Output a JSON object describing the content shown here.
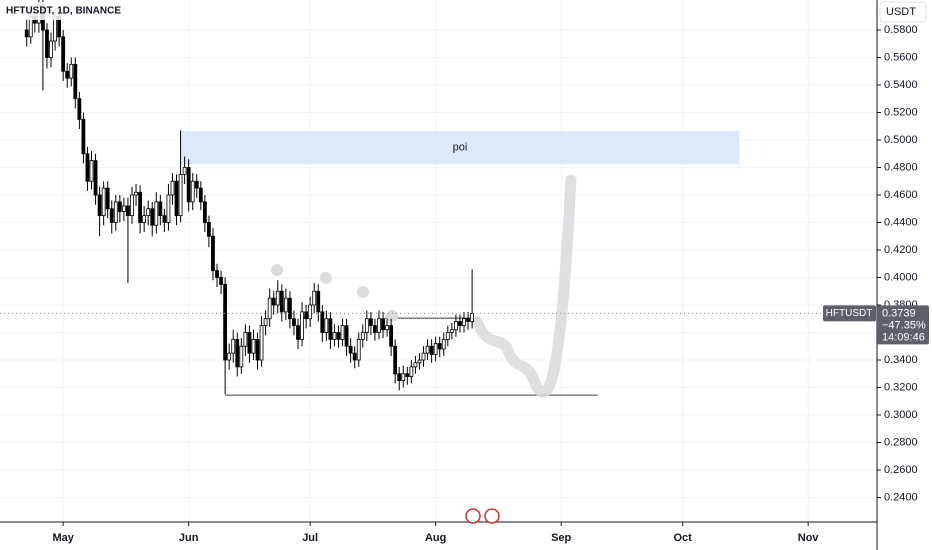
{
  "chart_data": {
    "type": "candlestick",
    "title": "HFTUSDT, 1D, BINANCE",
    "currency": "USDT",
    "up_color": "#ffffff",
    "down_color": "#000000",
    "grid": true,
    "xlim": [
      -15.6,
      201
    ],
    "ylim": [
      0.2222,
      0.6018
    ],
    "xticks": [
      {
        "value": 0,
        "label": "May"
      },
      {
        "value": 31,
        "label": "Jun"
      },
      {
        "value": 61,
        "label": "Jul"
      },
      {
        "value": 92,
        "label": "Aug"
      },
      {
        "value": 123,
        "label": "Sep"
      },
      {
        "value": 153,
        "label": "Oct"
      },
      {
        "value": 184,
        "label": "Nov"
      }
    ],
    "yticks": [
      {
        "value": 0.24,
        "label": "0.2400"
      },
      {
        "value": 0.26,
        "label": "0.2600"
      },
      {
        "value": 0.28,
        "label": "0.2800"
      },
      {
        "value": 0.3,
        "label": "0.3000"
      },
      {
        "value": 0.32,
        "label": "0.3200"
      },
      {
        "value": 0.34,
        "label": "0.3400"
      },
      {
        "value": 0.36,
        "label": "0.3600"
      },
      {
        "value": 0.38,
        "label": "0.3800"
      },
      {
        "value": 0.4,
        "label": "0.4000"
      },
      {
        "value": 0.42,
        "label": "0.4200"
      },
      {
        "value": 0.44,
        "label": "0.4400"
      },
      {
        "value": 0.46,
        "label": "0.4600"
      },
      {
        "value": 0.48,
        "label": "0.4800"
      },
      {
        "value": 0.5,
        "label": "0.5000"
      },
      {
        "value": 0.52,
        "label": "0.5200"
      },
      {
        "value": 0.54,
        "label": "0.5400"
      },
      {
        "value": 0.56,
        "label": "0.5600"
      },
      {
        "value": 0.58,
        "label": "0.5800"
      }
    ],
    "x": [
      -9,
      -8,
      -7,
      -6,
      -5,
      -4,
      -3,
      -2,
      -1,
      0,
      1,
      2,
      3,
      4,
      5,
      6,
      7,
      8,
      9,
      10,
      11,
      12,
      13,
      14,
      15,
      16,
      17,
      18,
      19,
      20,
      21,
      22,
      23,
      24,
      25,
      26,
      27,
      28,
      29,
      30,
      31,
      32,
      33,
      34,
      35,
      36,
      37,
      38,
      39,
      40,
      41,
      42,
      43,
      44,
      45,
      46,
      47,
      48,
      49,
      50,
      51,
      52,
      53,
      54,
      55,
      56,
      57,
      58,
      59,
      60,
      61,
      62,
      63,
      64,
      65,
      66,
      67,
      68,
      69,
      70,
      71,
      72,
      73,
      74,
      75,
      76,
      77,
      78,
      79,
      80,
      81,
      82,
      83,
      84,
      85,
      86,
      87,
      88,
      89,
      90,
      91,
      92,
      93,
      94,
      95,
      96,
      97,
      98,
      99,
      100,
      101
    ],
    "open": [
      0.58,
      0.575,
      0.59,
      0.585,
      0.598,
      0.58,
      0.56,
      0.572,
      0.59,
      0.575,
      0.55,
      0.545,
      0.555,
      0.53,
      0.515,
      0.49,
      0.47,
      0.485,
      0.46,
      0.445,
      0.465,
      0.45,
      0.44,
      0.455,
      0.448,
      0.452,
      0.445,
      0.46,
      0.462,
      0.44,
      0.445,
      0.45,
      0.438,
      0.455,
      0.445,
      0.44,
      0.46,
      0.47,
      0.445,
      0.475,
      0.48,
      0.455,
      0.47,
      0.465,
      0.455,
      0.44,
      0.43,
      0.405,
      0.4,
      0.395,
      0.34,
      0.345,
      0.355,
      0.335,
      0.35,
      0.36,
      0.345,
      0.355,
      0.34,
      0.365,
      0.37,
      0.385,
      0.38,
      0.39,
      0.375,
      0.385,
      0.37,
      0.365,
      0.355,
      0.375,
      0.37,
      0.38,
      0.39,
      0.375,
      0.36,
      0.37,
      0.355,
      0.36,
      0.355,
      0.365,
      0.35,
      0.345,
      0.34,
      0.355,
      0.36,
      0.37,
      0.365,
      0.36,
      0.37,
      0.362,
      0.365,
      0.35,
      0.33,
      0.325,
      0.33,
      0.328,
      0.335,
      0.338,
      0.34,
      0.345,
      0.35,
      0.344,
      0.352,
      0.348,
      0.355,
      0.36,
      0.362,
      0.368,
      0.365,
      0.37,
      0.368
    ],
    "high": [
      0.588,
      0.598,
      0.597,
      0.602,
      0.603,
      0.585,
      0.578,
      0.596,
      0.595,
      0.58,
      0.556,
      0.56,
      0.56,
      0.535,
      0.52,
      0.495,
      0.492,
      0.49,
      0.466,
      0.47,
      0.47,
      0.456,
      0.46,
      0.46,
      0.458,
      0.458,
      0.466,
      0.468,
      0.467,
      0.452,
      0.456,
      0.455,
      0.462,
      0.46,
      0.45,
      0.468,
      0.476,
      0.475,
      0.507,
      0.488,
      0.486,
      0.476,
      0.475,
      0.47,
      0.46,
      0.445,
      0.436,
      0.41,
      0.405,
      0.4,
      0.352,
      0.362,
      0.36,
      0.356,
      0.366,
      0.365,
      0.362,
      0.36,
      0.372,
      0.376,
      0.392,
      0.39,
      0.398,
      0.395,
      0.392,
      0.39,
      0.376,
      0.37,
      0.382,
      0.38,
      0.386,
      0.396,
      0.395,
      0.38,
      0.376,
      0.375,
      0.366,
      0.365,
      0.37,
      0.37,
      0.356,
      0.35,
      0.36,
      0.366,
      0.376,
      0.375,
      0.37,
      0.376,
      0.375,
      0.37,
      0.37,
      0.355,
      0.335,
      0.336,
      0.335,
      0.34,
      0.343,
      0.345,
      0.35,
      0.355,
      0.355,
      0.357,
      0.357,
      0.36,
      0.365,
      0.367,
      0.373,
      0.373,
      0.375,
      0.375,
      0.406
    ],
    "low": [
      0.568,
      0.57,
      0.578,
      0.578,
      0.536,
      0.552,
      0.553,
      0.565,
      0.568,
      0.543,
      0.538,
      0.539,
      0.523,
      0.508,
      0.483,
      0.463,
      0.464,
      0.453,
      0.43,
      0.438,
      0.443,
      0.432,
      0.434,
      0.44,
      0.441,
      0.396,
      0.439,
      0.452,
      0.432,
      0.433,
      0.438,
      0.43,
      0.432,
      0.438,
      0.433,
      0.434,
      0.453,
      0.438,
      0.44,
      0.468,
      0.448,
      0.449,
      0.458,
      0.449,
      0.433,
      0.422,
      0.398,
      0.393,
      0.388,
      0.315,
      0.333,
      0.338,
      0.328,
      0.33,
      0.343,
      0.338,
      0.34,
      0.333,
      0.335,
      0.358,
      0.364,
      0.373,
      0.374,
      0.368,
      0.369,
      0.363,
      0.358,
      0.348,
      0.35,
      0.363,
      0.364,
      0.374,
      0.368,
      0.353,
      0.354,
      0.348,
      0.35,
      0.349,
      0.35,
      0.343,
      0.338,
      0.334,
      0.335,
      0.349,
      0.354,
      0.358,
      0.354,
      0.355,
      0.356,
      0.357,
      0.343,
      0.323,
      0.318,
      0.32,
      0.322,
      0.323,
      0.33,
      0.333,
      0.335,
      0.34,
      0.338,
      0.339,
      0.342,
      0.343,
      0.35,
      0.355,
      0.357,
      0.36,
      0.36,
      0.362,
      0.363
    ],
    "close": [
      0.575,
      0.59,
      0.585,
      0.598,
      0.58,
      0.56,
      0.572,
      0.59,
      0.575,
      0.55,
      0.545,
      0.555,
      0.53,
      0.515,
      0.49,
      0.47,
      0.485,
      0.46,
      0.445,
      0.465,
      0.45,
      0.44,
      0.455,
      0.448,
      0.452,
      0.445,
      0.46,
      0.462,
      0.44,
      0.445,
      0.45,
      0.438,
      0.455,
      0.445,
      0.44,
      0.46,
      0.47,
      0.445,
      0.475,
      0.48,
      0.455,
      0.47,
      0.465,
      0.455,
      0.44,
      0.43,
      0.405,
      0.4,
      0.395,
      0.34,
      0.345,
      0.355,
      0.335,
      0.35,
      0.36,
      0.345,
      0.355,
      0.34,
      0.365,
      0.37,
      0.385,
      0.38,
      0.39,
      0.375,
      0.385,
      0.37,
      0.365,
      0.355,
      0.375,
      0.37,
      0.38,
      0.39,
      0.375,
      0.36,
      0.37,
      0.355,
      0.36,
      0.355,
      0.365,
      0.35,
      0.345,
      0.34,
      0.355,
      0.36,
      0.37,
      0.365,
      0.36,
      0.37,
      0.362,
      0.365,
      0.35,
      0.33,
      0.325,
      0.33,
      0.328,
      0.335,
      0.338,
      0.34,
      0.345,
      0.35,
      0.344,
      0.352,
      0.348,
      0.355,
      0.36,
      0.362,
      0.368,
      0.365,
      0.37,
      0.368,
      0.3739
    ],
    "zones": [
      {
        "label": "poi",
        "x": [
          29,
          167
        ],
        "y": [
          0.4825,
          0.5065
        ],
        "color": "#dbe9fb"
      }
    ],
    "levels": [
      {
        "y": 0.3145,
        "x": [
          40,
          132
        ]
      },
      {
        "y": 0.3705,
        "x": [
          79.5,
          103
        ]
      }
    ],
    "last_price": {
      "symbol": "HFTUSDT",
      "value": 0.3739,
      "change": "−47.35%",
      "countdown": "14:09:46"
    }
  }
}
